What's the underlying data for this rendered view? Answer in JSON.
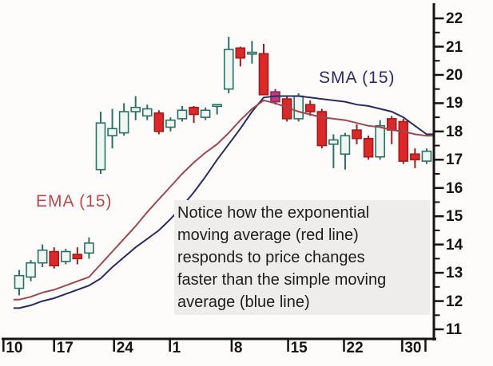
{
  "labels": {
    "ema": "EMA (15)",
    "sma": "SMA (15)",
    "annotation": "Notice how the exponential\nmoving average (red line)\nresponds to price changes\nfaster than the simple moving\naverage (blue line)"
  },
  "colors": {
    "background": "#fdfcfb",
    "axis": "#141414",
    "up_fill": "#eef6f1",
    "up_border": "#2e6f63",
    "down_fill": "#dc2828",
    "down_border": "#a01d1d",
    "magenta_fill": "#c23b78",
    "magenta_border": "#8e2456",
    "ema_line": "#9c4850",
    "sma_line": "#2b2b5e",
    "ema_label": "#b5494f",
    "sma_label": "#2a2a60",
    "annotation_text": "#1d1d1d",
    "annotation_bg": "#efedeb"
  },
  "chart_data": {
    "type": "candlestick",
    "title": "",
    "legend_position": "inline-labels",
    "grid": false,
    "y_axis": {
      "ticks": [
        11,
        12,
        13,
        14,
        15,
        16,
        17,
        18,
        19,
        20,
        21,
        22
      ],
      "minor_ticks": [
        11.5,
        12.5,
        13.5,
        14.5,
        15.5,
        16.5,
        17.5,
        18.5,
        19.5,
        20.5,
        21.5
      ],
      "range": [
        10.8,
        22.3
      ],
      "side": "right"
    },
    "x_axis": {
      "ticks": [
        {
          "label": "10",
          "day": -1.35
        },
        {
          "label": "17",
          "day": 3.0
        },
        {
          "label": "24",
          "day": 8.15
        },
        {
          "label": "1",
          "day": 12.95
        },
        {
          "label": "8",
          "day": 18.25
        },
        {
          "label": "15",
          "day": 23.1
        },
        {
          "label": "22",
          "day": 27.9
        },
        {
          "label": "30",
          "day": 32.9
        }
      ],
      "end_tick_day": 34.9
    },
    "candles": [
      {
        "o": 12.45,
        "h": 13.1,
        "l": 12.2,
        "c": 12.9
      },
      {
        "o": 12.85,
        "h": 13.45,
        "l": 12.7,
        "c": 13.35
      },
      {
        "o": 13.35,
        "h": 14.0,
        "l": 13.2,
        "c": 13.8
      },
      {
        "o": 13.75,
        "h": 13.9,
        "l": 13.15,
        "c": 13.25
      },
      {
        "o": 13.4,
        "h": 13.85,
        "l": 13.3,
        "c": 13.75
      },
      {
        "o": 13.65,
        "h": 13.9,
        "l": 13.3,
        "c": 13.5
      },
      {
        "o": 13.7,
        "h": 14.25,
        "l": 13.5,
        "c": 14.05
      },
      {
        "o": 16.65,
        "h": 18.7,
        "l": 16.5,
        "c": 18.3
      },
      {
        "o": 17.85,
        "h": 18.8,
        "l": 17.4,
        "c": 18.1
      },
      {
        "o": 17.95,
        "h": 19.0,
        "l": 17.85,
        "c": 18.7
      },
      {
        "o": 18.7,
        "h": 19.25,
        "l": 18.4,
        "c": 18.85
      },
      {
        "o": 18.55,
        "h": 18.95,
        "l": 18.4,
        "c": 18.8
      },
      {
        "o": 18.65,
        "h": 18.75,
        "l": 17.9,
        "c": 18.0
      },
      {
        "o": 18.15,
        "h": 18.5,
        "l": 18.0,
        "c": 18.4
      },
      {
        "o": 18.45,
        "h": 18.9,
        "l": 18.35,
        "c": 18.75
      },
      {
        "o": 18.85,
        "h": 18.9,
        "l": 18.3,
        "c": 18.6
      },
      {
        "o": 18.5,
        "h": 18.85,
        "l": 18.4,
        "c": 18.75
      },
      {
        "o": 18.95,
        "h": 18.95,
        "l": 18.6,
        "c": 18.95
      },
      {
        "o": 19.5,
        "h": 21.35,
        "l": 19.35,
        "c": 20.9
      },
      {
        "o": 20.95,
        "h": 21.0,
        "l": 20.3,
        "c": 20.6
      },
      {
        "o": 20.8,
        "h": 21.2,
        "l": 20.4,
        "c": 20.8
      },
      {
        "o": 20.75,
        "h": 21.1,
        "l": 19.3,
        "c": 19.3
      },
      {
        "o": 19.4,
        "h": 19.5,
        "l": 18.95,
        "c": 19.05,
        "variant": "magenta"
      },
      {
        "o": 19.15,
        "h": 19.25,
        "l": 18.35,
        "c": 18.45
      },
      {
        "o": 18.45,
        "h": 19.35,
        "l": 18.35,
        "c": 19.25
      },
      {
        "o": 18.95,
        "h": 19.1,
        "l": 18.55,
        "c": 18.7
      },
      {
        "o": 18.7,
        "h": 18.8,
        "l": 17.4,
        "c": 17.5
      },
      {
        "o": 17.55,
        "h": 17.9,
        "l": 16.7,
        "c": 17.7
      },
      {
        "o": 17.2,
        "h": 17.95,
        "l": 16.65,
        "c": 17.85
      },
      {
        "o": 18.05,
        "h": 18.25,
        "l": 17.55,
        "c": 17.75
      },
      {
        "o": 17.75,
        "h": 17.85,
        "l": 17.0,
        "c": 17.1
      },
      {
        "o": 17.1,
        "h": 18.4,
        "l": 17.0,
        "c": 18.2
      },
      {
        "o": 18.45,
        "h": 18.55,
        "l": 17.55,
        "c": 18.05
      },
      {
        "o": 18.35,
        "h": 18.45,
        "l": 16.85,
        "c": 16.95
      },
      {
        "o": 17.2,
        "h": 17.4,
        "l": 16.7,
        "c": 17.0
      },
      {
        "o": 16.95,
        "h": 17.4,
        "l": 16.85,
        "c": 17.3
      }
    ],
    "series": [
      {
        "name": "EMA (15)",
        "type": "line",
        "values": [
          12.05,
          12.15,
          12.3,
          12.4,
          12.55,
          12.7,
          12.85,
          13.3,
          13.75,
          14.2,
          14.65,
          15.15,
          15.6,
          16.05,
          16.5,
          16.9,
          17.25,
          17.55,
          17.95,
          18.4,
          18.8,
          19.1,
          19.0,
          18.85,
          18.7,
          18.6,
          18.5,
          18.45,
          18.4,
          18.3,
          18.2,
          18.15,
          18.05,
          18.0,
          17.9,
          17.85
        ]
      },
      {
        "name": "SMA (15)",
        "type": "line",
        "values": [
          11.75,
          11.85,
          12.0,
          12.1,
          12.25,
          12.4,
          12.55,
          12.8,
          13.2,
          13.55,
          13.9,
          14.2,
          14.5,
          14.9,
          15.35,
          15.85,
          16.4,
          17.0,
          17.55,
          18.1,
          18.7,
          19.2,
          19.25,
          19.25,
          19.25,
          19.2,
          19.15,
          19.1,
          19.05,
          18.95,
          18.9,
          18.8,
          18.7,
          18.5,
          18.2,
          17.9
        ]
      }
    ]
  }
}
